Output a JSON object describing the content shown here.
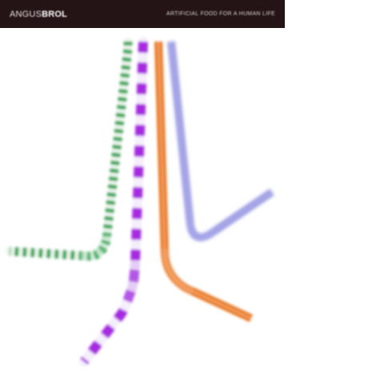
{
  "banner": {
    "brand_light": "ANGUS",
    "brand_bold": "BROL",
    "tagline": "ARTIFICIAL FOOD FOR A HUMAN LIFE"
  },
  "photo": {
    "subject": "straws",
    "straws": [
      {
        "name": "green",
        "stripe_color": "#27a34d"
      },
      {
        "name": "purple",
        "stripe_color": "#a62be0"
      },
      {
        "name": "orange",
        "stripe_color": "#e8741f"
      },
      {
        "name": "blue",
        "stripe_color": "#6f6fd8"
      }
    ],
    "background_color": "#ffffff"
  }
}
